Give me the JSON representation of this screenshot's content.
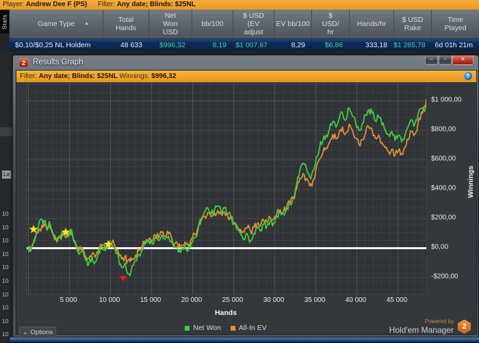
{
  "app": {
    "top_bar": {
      "player_label": "Player:",
      "player_name": "Andrew Dee F (PS)",
      "filter_label": "Filter:",
      "filter_value": "Any date; Blinds: $25NL"
    },
    "stats_tab_label": "Stats",
    "table": {
      "columns": [
        {
          "label": "Game Type",
          "sort": "asc"
        },
        {
          "label": "Total\nHands"
        },
        {
          "label": "Net\nWon\nUSD"
        },
        {
          "label": "bb/100"
        },
        {
          "label": "$ USD\n(EV\nadjust"
        },
        {
          "label": "EV bb/100"
        },
        {
          "label": "$\nUSD/\nhr"
        },
        {
          "label": "Hands/hr"
        },
        {
          "label": "$ USD\nRake"
        },
        {
          "label": "Time\nPlayed"
        }
      ],
      "row": [
        {
          "value": "$0,10/$0,25 NL Holdem",
          "color": "white"
        },
        {
          "value": "48 633",
          "color": "white"
        },
        {
          "value": "$996,32",
          "color": "green"
        },
        {
          "value": "8,19",
          "color": "green"
        },
        {
          "value": "$1 007,67",
          "color": "green"
        },
        {
          "value": "8,29",
          "color": "white"
        },
        {
          "value": "$6,86",
          "color": "green"
        },
        {
          "value": "333,18",
          "color": "white"
        },
        {
          "value": "$1 285,78",
          "color": "green"
        },
        {
          "value": "6d 01h 21m",
          "color": "white"
        }
      ]
    },
    "background_panel": {
      "clipped_label": "La",
      "tick_values": [
        "10",
        "10",
        "10",
        "10",
        "10",
        "10",
        "10",
        "10",
        "10",
        "10"
      ]
    }
  },
  "window": {
    "title": "Results Graph",
    "title_icon_text": "2",
    "controls": {
      "minimize": "–",
      "maximize": "▫",
      "close": "✕"
    },
    "filter_bar": {
      "filter_label": "Filter:",
      "filter_value": "Any date; Blinds: $25NL",
      "winnings_label": "Winnings:",
      "winnings_value": "$996,32",
      "info_icon": "?"
    },
    "options_button": {
      "label": "Options",
      "caret": "▴"
    },
    "footer": {
      "powered_by": "Powered by",
      "brand": "Hold'em Manager",
      "badge": "2"
    }
  },
  "chart_data": {
    "type": "line",
    "title": "",
    "xlabel": "Hands",
    "ylabel": "Winnings",
    "xlim": [
      0,
      48633
    ],
    "ylim": [
      -310,
      1130
    ],
    "grid": true,
    "legend_position": "bottom",
    "zero_line": true,
    "x_ticks": [
      {
        "value": 5000,
        "label": "5 000"
      },
      {
        "value": 10000,
        "label": "10 000"
      },
      {
        "value": 15000,
        "label": "15 000"
      },
      {
        "value": 20000,
        "label": "20 000"
      },
      {
        "value": 25000,
        "label": "25 000"
      },
      {
        "value": 30000,
        "label": "30 000"
      },
      {
        "value": 35000,
        "label": "35 000"
      },
      {
        "value": 40000,
        "label": "40 000"
      },
      {
        "value": 45000,
        "label": "45 000"
      }
    ],
    "y_ticks": [
      {
        "value": 1000,
        "label": "$1 000,00"
      },
      {
        "value": 800,
        "label": "$800,00"
      },
      {
        "value": 600,
        "label": "$600,00"
      },
      {
        "value": 400,
        "label": "$400,00"
      },
      {
        "value": 200,
        "label": "$200,00"
      },
      {
        "value": 0,
        "label": "$0,00"
      },
      {
        "value": -200,
        "label": "-$200,00"
      }
    ],
    "hands": [
      0,
      300,
      700,
      1200,
      1700,
      2000,
      2300,
      2700,
      3100,
      3500,
      3900,
      4300,
      4700,
      5100,
      5400,
      5800,
      6200,
      6600,
      7000,
      7400,
      7800,
      8200,
      8600,
      9000,
      9400,
      9800,
      10200,
      10600,
      11000,
      11400,
      11800,
      12100,
      12400,
      12700,
      13100,
      13500,
      13900,
      14300,
      14700,
      15100,
      15500,
      15900,
      16300,
      16700,
      17100,
      17500,
      17900,
      18300,
      18700,
      19100,
      19500,
      19900,
      20300,
      20700,
      21100,
      21500,
      21900,
      22300,
      22700,
      23100,
      23500,
      23900,
      24300,
      24700,
      25100,
      25500,
      25900,
      26300,
      26700,
      27100,
      27500,
      27900,
      28300,
      28700,
      29100,
      29500,
      29900,
      30300,
      30700,
      31100,
      31500,
      31900,
      32300,
      32700,
      33100,
      33500,
      33900,
      34300,
      34700,
      35100,
      35500,
      35900,
      36300,
      36700,
      37100,
      37500,
      37900,
      38300,
      38700,
      39100,
      39500,
      39900,
      40300,
      40700,
      41100,
      41500,
      41900,
      42300,
      42700,
      43100,
      43500,
      43900,
      44300,
      44700,
      45100,
      45500,
      45900,
      46300,
      46700,
      47100,
      47500,
      47900,
      48300,
      48633
    ],
    "series": [
      {
        "name": "Net Won",
        "color": "#3fcf3f",
        "values": [
          0,
          -25,
          45,
          130,
          195,
          175,
          140,
          160,
          90,
          40,
          70,
          110,
          85,
          120,
          95,
          20,
          -45,
          -15,
          -85,
          -110,
          -60,
          -95,
          -25,
          15,
          -20,
          35,
          30,
          -5,
          -60,
          -135,
          -105,
          -175,
          -190,
          -120,
          -85,
          -45,
          -10,
          25,
          50,
          30,
          70,
          50,
          90,
          60,
          80,
          45,
          5,
          -30,
          -10,
          15,
          -20,
          35,
          70,
          120,
          200,
          245,
          270,
          230,
          255,
          285,
          250,
          270,
          235,
          210,
          160,
          120,
          90,
          55,
          95,
          50,
          100,
          135,
          115,
          160,
          145,
          185,
          170,
          215,
          250,
          230,
          270,
          300,
          345,
          430,
          530,
          575,
          540,
          480,
          525,
          615,
          680,
          725,
          765,
          805,
          855,
          820,
          880,
          915,
          870,
          950,
          895,
          845,
          800,
          845,
          905,
          940,
          915,
          860,
          890,
          835,
          800,
          770,
          790,
          730,
          765,
          720,
          765,
          825,
          870,
          840,
          910,
          950,
          925,
          996
        ]
      },
      {
        "name": "All-In EV",
        "color": "#e38f33",
        "values": [
          0,
          -15,
          35,
          100,
          155,
          150,
          120,
          135,
          85,
          50,
          75,
          95,
          80,
          105,
          85,
          30,
          -20,
          0,
          -55,
          -75,
          -40,
          -65,
          -10,
          20,
          0,
          40,
          35,
          10,
          -30,
          -75,
          -60,
          -90,
          -95,
          -75,
          -50,
          -20,
          10,
          35,
          60,
          45,
          85,
          65,
          105,
          80,
          95,
          65,
          30,
          5,
          20,
          40,
          15,
          60,
          95,
          140,
          185,
          215,
          240,
          210,
          235,
          255,
          230,
          245,
          220,
          200,
          170,
          140,
          125,
          105,
          135,
          110,
          140,
          165,
          150,
          185,
          175,
          205,
          195,
          235,
          260,
          245,
          280,
          300,
          335,
          400,
          470,
          505,
          470,
          420,
          460,
          545,
          605,
          645,
          680,
          715,
          770,
          740,
          790,
          820,
          780,
          840,
          800,
          745,
          705,
          735,
          780,
          820,
          800,
          745,
          765,
          715,
          680,
          655,
          670,
          630,
          660,
          640,
          685,
          735,
          790,
          770,
          850,
          925,
          965,
          1007
        ]
      }
    ],
    "markers": {
      "stars": {
        "color": "#ffe42a",
        "points": [
          {
            "hands": 667,
            "value": 126
          },
          {
            "hands": 4583,
            "value": 107
          },
          {
            "hands": 9750,
            "value": 23
          }
        ]
      },
      "triangle": {
        "color": "#e01f1f",
        "hands": 11583,
        "value": -209
      }
    }
  }
}
